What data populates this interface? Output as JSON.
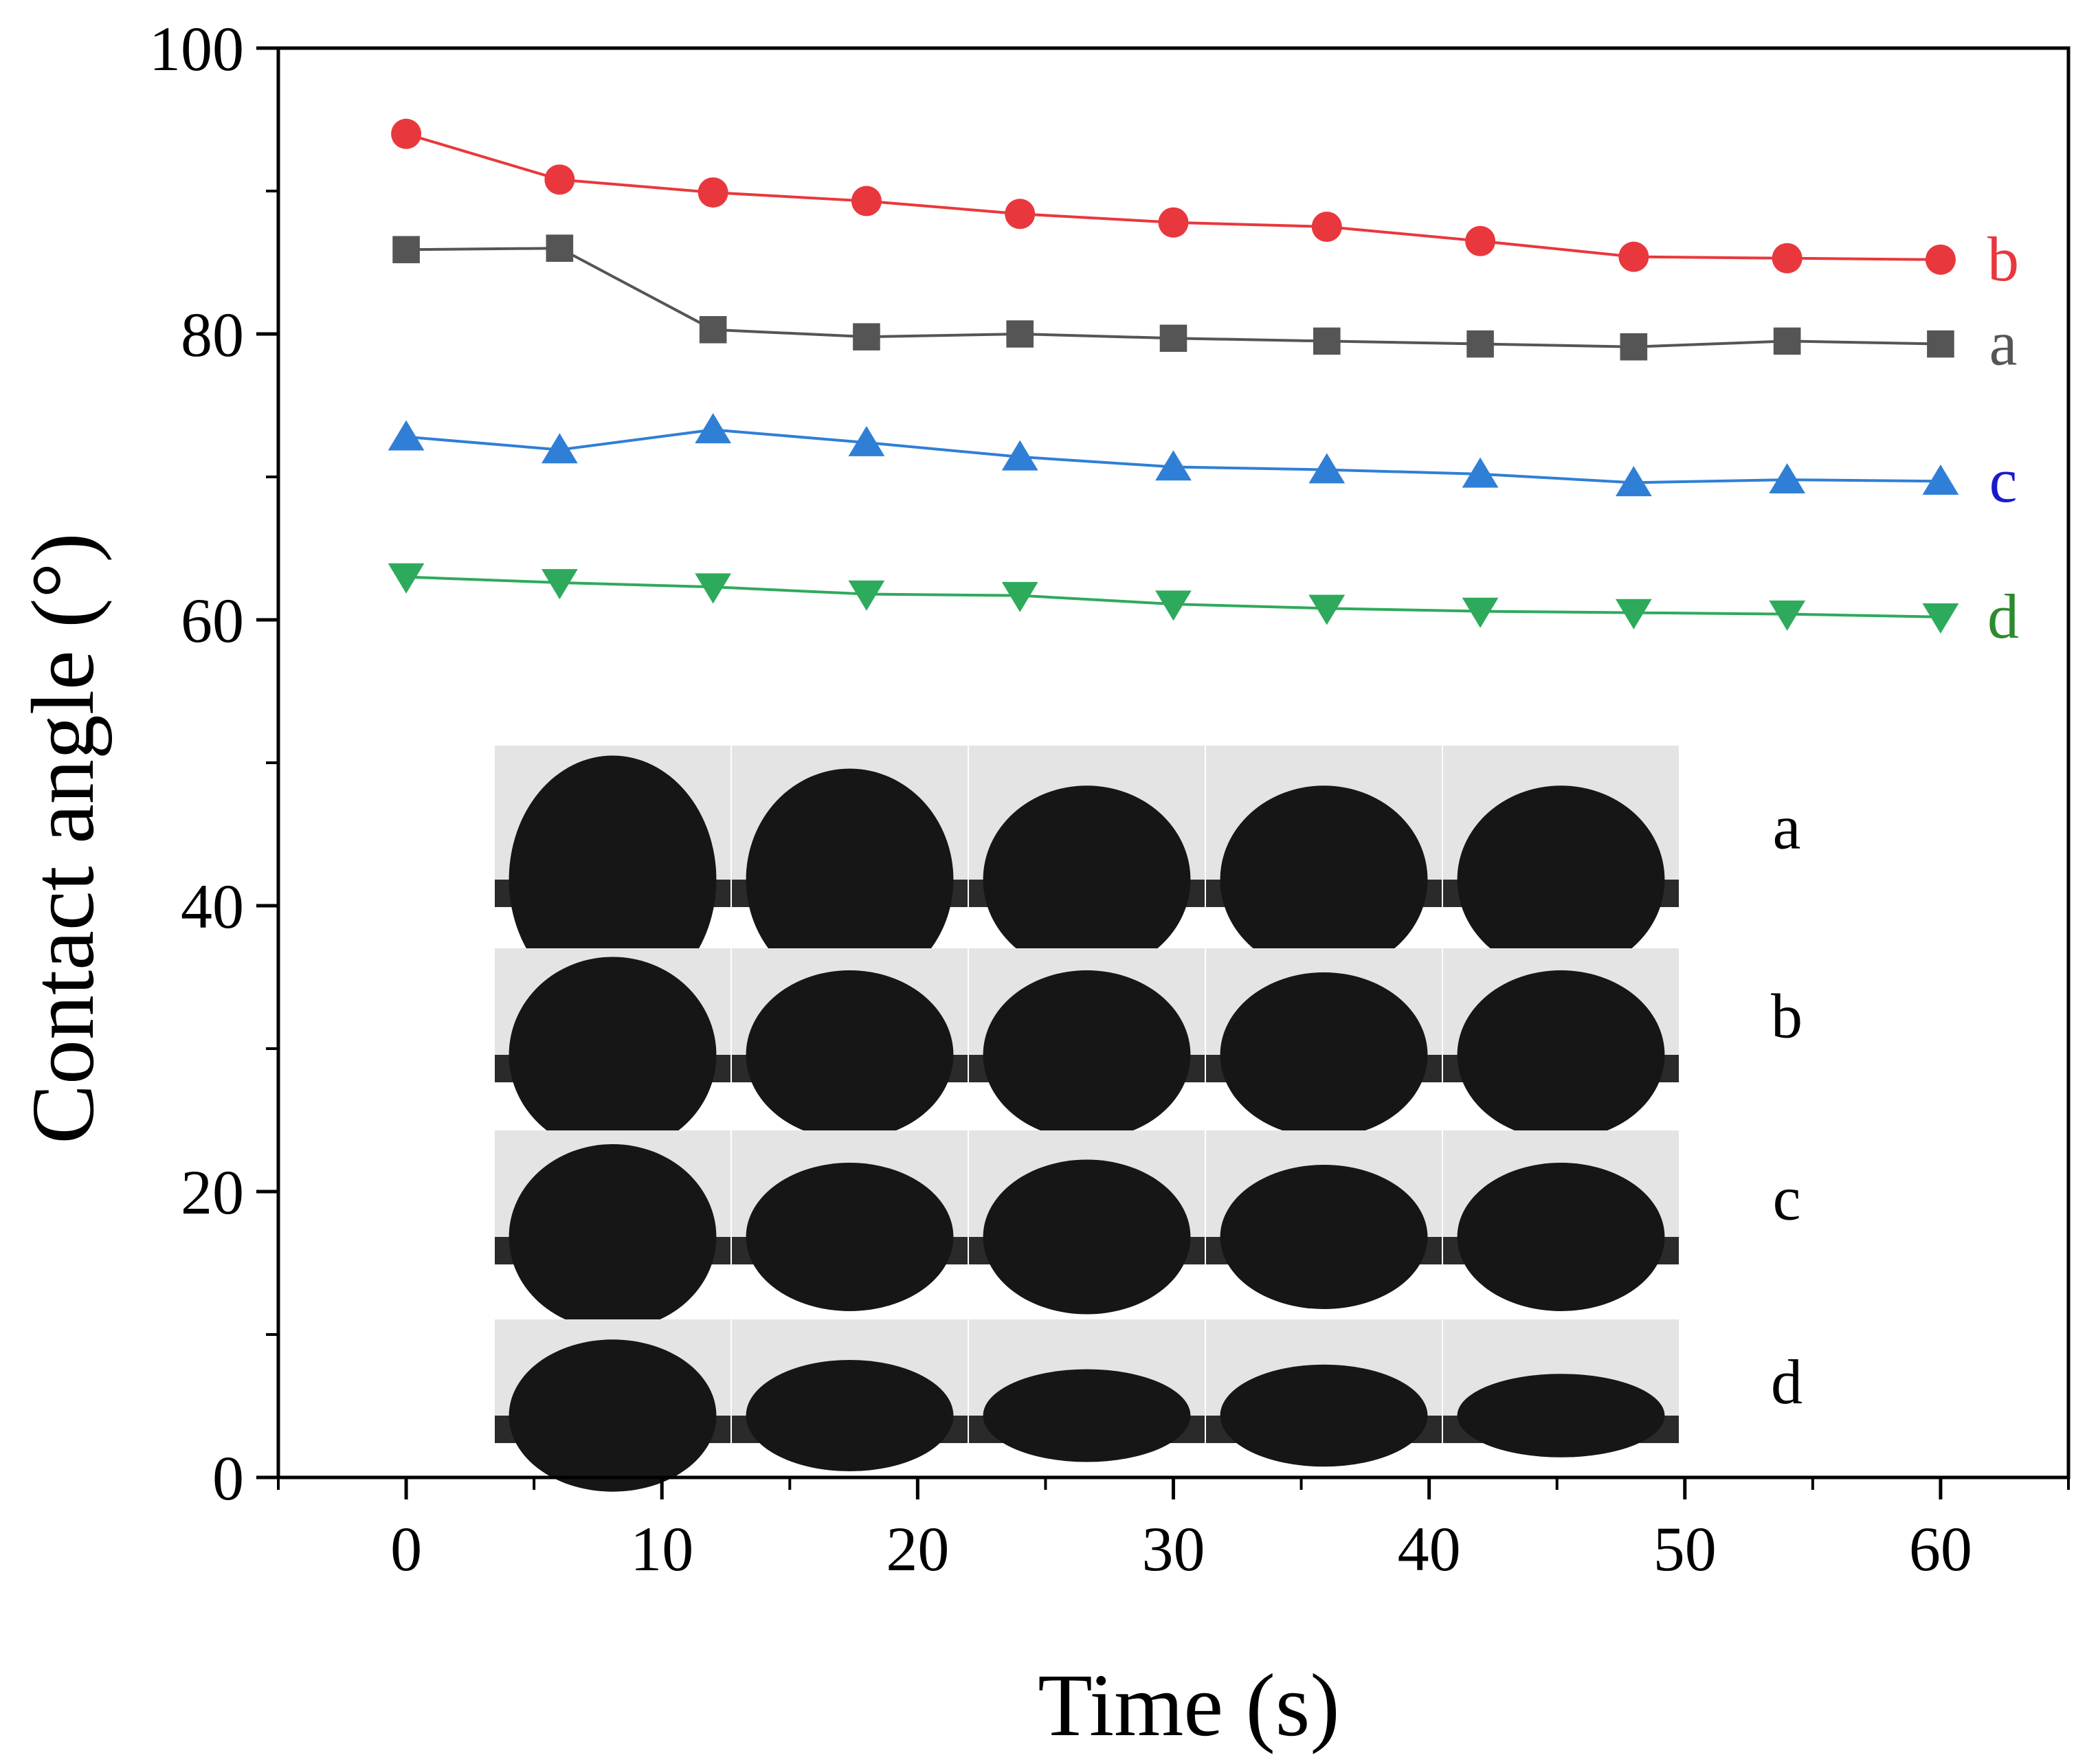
{
  "chart_data": {
    "type": "line",
    "title": "",
    "xlabel": "Time (s)",
    "ylabel": "Contact angle (°)",
    "xlim": [
      -5,
      65
    ],
    "ylim": [
      0,
      100
    ],
    "x_ticks": [
      0,
      10,
      20,
      30,
      40,
      50,
      60
    ],
    "y_ticks": [
      0,
      20,
      40,
      60,
      80,
      100
    ],
    "x": [
      0,
      6,
      12,
      18,
      24,
      30,
      36,
      42,
      48,
      54,
      60
    ],
    "grid": false,
    "series": [
      {
        "name": "b",
        "color": "#e8383d",
        "marker": "circle",
        "values": [
          94.0,
          90.8,
          89.9,
          89.3,
          88.4,
          87.8,
          87.5,
          86.5,
          85.4,
          85.3,
          85.2
        ]
      },
      {
        "name": "a",
        "color": "#555555",
        "marker": "square",
        "values": [
          85.9,
          86.0,
          80.3,
          79.8,
          80.0,
          79.7,
          79.5,
          79.3,
          79.1,
          79.5,
          79.3
        ]
      },
      {
        "name": "c",
        "color": "#2f7fd6",
        "marker": "triangle-up",
        "values": [
          72.8,
          71.9,
          73.3,
          72.4,
          71.4,
          70.7,
          70.5,
          70.2,
          69.6,
          69.8,
          69.7
        ]
      },
      {
        "name": "d",
        "color": "#2eaa5c",
        "marker": "triangle-down",
        "values": [
          63.0,
          62.6,
          62.3,
          61.8,
          61.7,
          61.1,
          60.8,
          60.6,
          60.5,
          60.4,
          60.2
        ]
      }
    ],
    "end_labels": [
      {
        "text": "b",
        "color": "#e8383d"
      },
      {
        "text": "a",
        "color": "#555555"
      },
      {
        "text": "c",
        "color": "#1a1acc"
      },
      {
        "text": "d",
        "color": "#2e8a2e"
      }
    ],
    "inset": {
      "description": "droplet photographs",
      "rows": [
        {
          "label": "a",
          "drop_heights": [
            0.95,
            0.85,
            0.72,
            0.72,
            0.72
          ]
        },
        {
          "label": "b",
          "drop_heights": [
            0.95,
            0.82,
            0.82,
            0.8,
            0.82
          ]
        },
        {
          "label": "c",
          "drop_heights": [
            0.9,
            0.72,
            0.75,
            0.7,
            0.72
          ]
        },
        {
          "label": "d",
          "drop_heights": [
            0.82,
            0.6,
            0.5,
            0.55,
            0.45
          ]
        }
      ]
    }
  }
}
